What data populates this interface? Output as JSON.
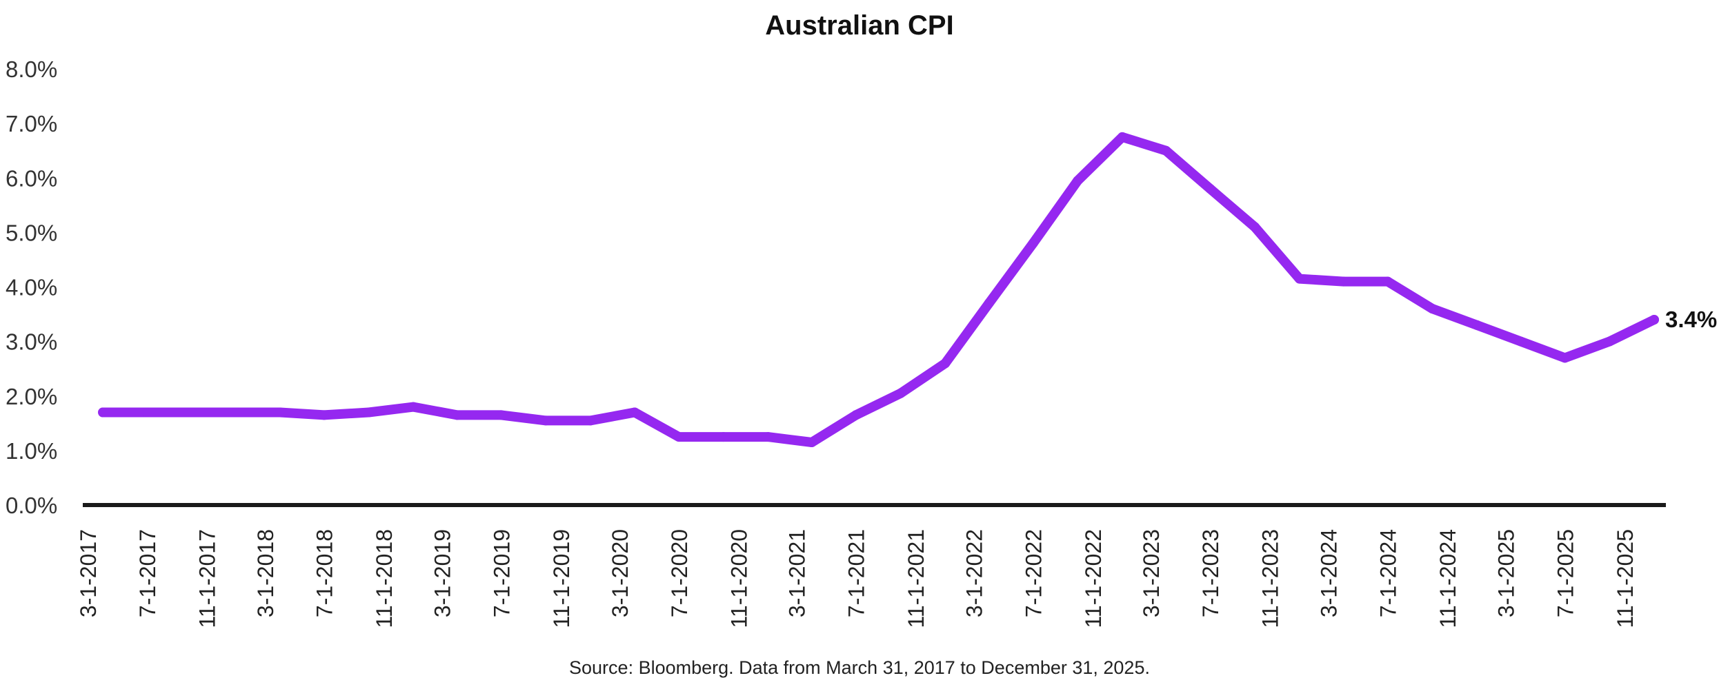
{
  "chart_data": {
    "type": "line",
    "title": "Australian CPI",
    "xlabel": "",
    "ylabel": "",
    "ylim": [
      0,
      8
    ],
    "yticks": [
      "0.0%",
      "1.0%",
      "2.0%",
      "3.0%",
      "4.0%",
      "5.0%",
      "6.0%",
      "7.0%",
      "8.0%"
    ],
    "xtick_labels": [
      "3-1-2017",
      "7-1-2017",
      "11-1-2017",
      "3-1-2018",
      "7-1-2018",
      "11-1-2018",
      "3-1-2019",
      "7-1-2019",
      "11-1-2019",
      "3-1-2020",
      "7-1-2020",
      "11-1-2020",
      "3-1-2021",
      "7-1-2021",
      "11-1-2021",
      "3-1-2022",
      "7-1-2022",
      "11-1-2022",
      "3-1-2023",
      "7-1-2023",
      "11-1-2023",
      "3-1-2024",
      "7-1-2024",
      "11-1-2024",
      "3-1-2025",
      "7-1-2025",
      "11-1-2025"
    ],
    "series": [
      {
        "name": "Australian CPI",
        "color": "#9528F0",
        "x": [
          "3-31-2017",
          "6-30-2017",
          "9-30-2017",
          "12-31-2017",
          "3-31-2018",
          "6-30-2018",
          "9-30-2018",
          "12-31-2018",
          "3-31-2019",
          "6-30-2019",
          "9-30-2019",
          "12-31-2019",
          "3-31-2020",
          "6-30-2020",
          "9-30-2020",
          "12-31-2020",
          "3-31-2021",
          "6-30-2021",
          "9-30-2021",
          "12-31-2021",
          "3-31-2022",
          "6-30-2022",
          "9-30-2022",
          "12-31-2022",
          "3-31-2023",
          "6-30-2023",
          "9-30-2023",
          "12-31-2023",
          "3-31-2024",
          "6-30-2024",
          "9-30-2024",
          "12-31-2024",
          "3-31-2025",
          "6-30-2025",
          "9-30-2025",
          "12-31-2025"
        ],
        "values": [
          1.7,
          1.7,
          1.7,
          1.7,
          1.7,
          1.65,
          1.7,
          1.8,
          1.65,
          1.65,
          1.55,
          1.55,
          1.7,
          1.25,
          1.25,
          1.25,
          1.15,
          1.65,
          2.05,
          2.6,
          3.7,
          4.8,
          5.95,
          6.75,
          6.5,
          5.8,
          5.1,
          4.15,
          4.1,
          4.1,
          3.6,
          3.3,
          3.0,
          2.7,
          3.0,
          3.4
        ]
      }
    ],
    "end_label": "3.4%",
    "source": "Source: Bloomberg. Data from March 31, 2017 to December 31, 2025."
  }
}
